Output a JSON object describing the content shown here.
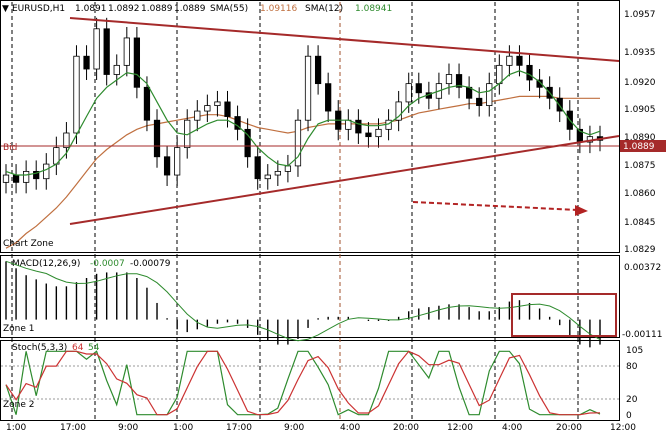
{
  "header": {
    "symbol": "EURUSD,H1",
    "ohlc": [
      "1.0891",
      "1.0892",
      "1.0889",
      "1.0889"
    ],
    "sma55_label": "SMA(55)",
    "sma55_value": "1.09116",
    "sma12_label": "SMA(12)",
    "sma12_value": "1.08941"
  },
  "price_axis": {
    "ticks": [
      "1.0957",
      "1.0935",
      "1.0920",
      "1.0905",
      "1.0890",
      "1.0875",
      "1.0860",
      "1.0845",
      "1.0829"
    ],
    "bid_label": "Bid",
    "bid_value": "1.0889"
  },
  "panel_labels": {
    "chart_zone": "Chart Zone",
    "zone1": "Zone 1",
    "zone2": "Zone 2"
  },
  "macd": {
    "label": "MACD(12,26,9)",
    "value1": "-0.0007",
    "value2": "-0.00079",
    "top_tick": "0.00372",
    "bottom_tick": "-0.00111"
  },
  "stoch": {
    "label": "Stoch(5,3,3)",
    "k": "64",
    "d": "54",
    "ticks": [
      "105",
      "80",
      "20",
      "0"
    ]
  },
  "time_axis": [
    "1:00",
    "17:00",
    "9:00",
    "1:00",
    "17:00",
    "9:00",
    "4:00",
    "20:00",
    "12:00",
    "4:00",
    "20:00",
    "12:00"
  ],
  "colors": {
    "trendline": "#a52a2a",
    "sma12": "#2e8b2e",
    "sma55": "#c07040",
    "bid_line": "#a52a2a",
    "macd_signal": "#2e8b2e",
    "stoch_k": "#2e8b2e",
    "stoch_d": "#cc3333",
    "bid_box": "#a52a2a"
  },
  "chart_data": {
    "type": "candlestick",
    "symbol": "EURUSD",
    "timeframe": "H1",
    "ylim": [
      1.0829,
      1.0957
    ],
    "closes": [
      1.087,
      1.0866,
      1.0872,
      1.0868,
      1.0876,
      1.0885,
      1.0893,
      1.0935,
      1.0928,
      1.095,
      1.0925,
      1.093,
      1.0945,
      1.0918,
      1.09,
      1.088,
      1.087,
      1.0885,
      1.09,
      1.0905,
      1.0908,
      1.091,
      1.0902,
      1.0895,
      1.088,
      1.0868,
      1.087,
      1.0872,
      1.0875,
      1.09,
      1.0935,
      1.092,
      1.0905,
      1.0895,
      1.09,
      1.0893,
      1.0891,
      1.0895,
      1.09,
      1.091,
      1.092,
      1.0915,
      1.0912,
      1.092,
      1.0925,
      1.0918,
      1.0912,
      1.0908,
      1.092,
      1.093,
      1.0935,
      1.093,
      1.0922,
      1.0918,
      1.0912,
      1.0905,
      1.0895,
      1.0888,
      1.0891,
      1.0889
    ],
    "sma12": [
      1.0872,
      1.087,
      1.087,
      1.0871,
      1.0873,
      1.0876,
      1.0882,
      1.0892,
      1.0902,
      1.0912,
      1.0918,
      1.0922,
      1.0926,
      1.0925,
      1.092,
      1.091,
      1.09,
      1.0893,
      1.0892,
      1.0895,
      1.0898,
      1.09,
      1.09,
      1.0897,
      1.0892,
      1.0885,
      1.088,
      1.0876,
      1.0875,
      1.088,
      1.089,
      1.0898,
      1.09,
      1.09,
      1.09,
      1.0898,
      1.0897,
      1.0897,
      1.0898,
      1.0902,
      1.0908,
      1.0912,
      1.0914,
      1.0916,
      1.0918,
      1.0919,
      1.0918,
      1.0915,
      1.0916,
      1.092,
      1.0925,
      1.0927,
      1.0925,
      1.0921,
      1.0915,
      1.0908,
      1.09,
      1.0894,
      1.0892,
      1.0894
    ],
    "sma55": [
      1.083,
      1.0833,
      1.0838,
      1.0842,
      1.0847,
      1.0852,
      1.0858,
      1.0865,
      1.0872,
      1.0879,
      1.0884,
      1.0888,
      1.0892,
      1.0895,
      1.0897,
      1.0898,
      1.0899,
      1.09,
      1.0901,
      1.0902,
      1.0903,
      1.0903,
      1.0902,
      1.09,
      1.0898,
      1.0896,
      1.0895,
      1.0894,
      1.0893,
      1.0894,
      1.0896,
      1.0897,
      1.0898,
      1.0898,
      1.0898,
      1.0898,
      1.0898,
      1.0898,
      1.0899,
      1.09,
      1.0902,
      1.0904,
      1.0905,
      1.0906,
      1.0907,
      1.0908,
      1.0909,
      1.0909,
      1.091,
      1.0911,
      1.0912,
      1.0913,
      1.0913,
      1.0913,
      1.0913,
      1.0912,
      1.0912,
      1.0912,
      1.0912,
      1.0912
    ],
    "macd_hist_ylim": [
      -0.00111,
      0.00372
    ],
    "stoch_ylim": [
      0,
      105
    ],
    "stoch_levels": [
      80,
      20
    ]
  }
}
